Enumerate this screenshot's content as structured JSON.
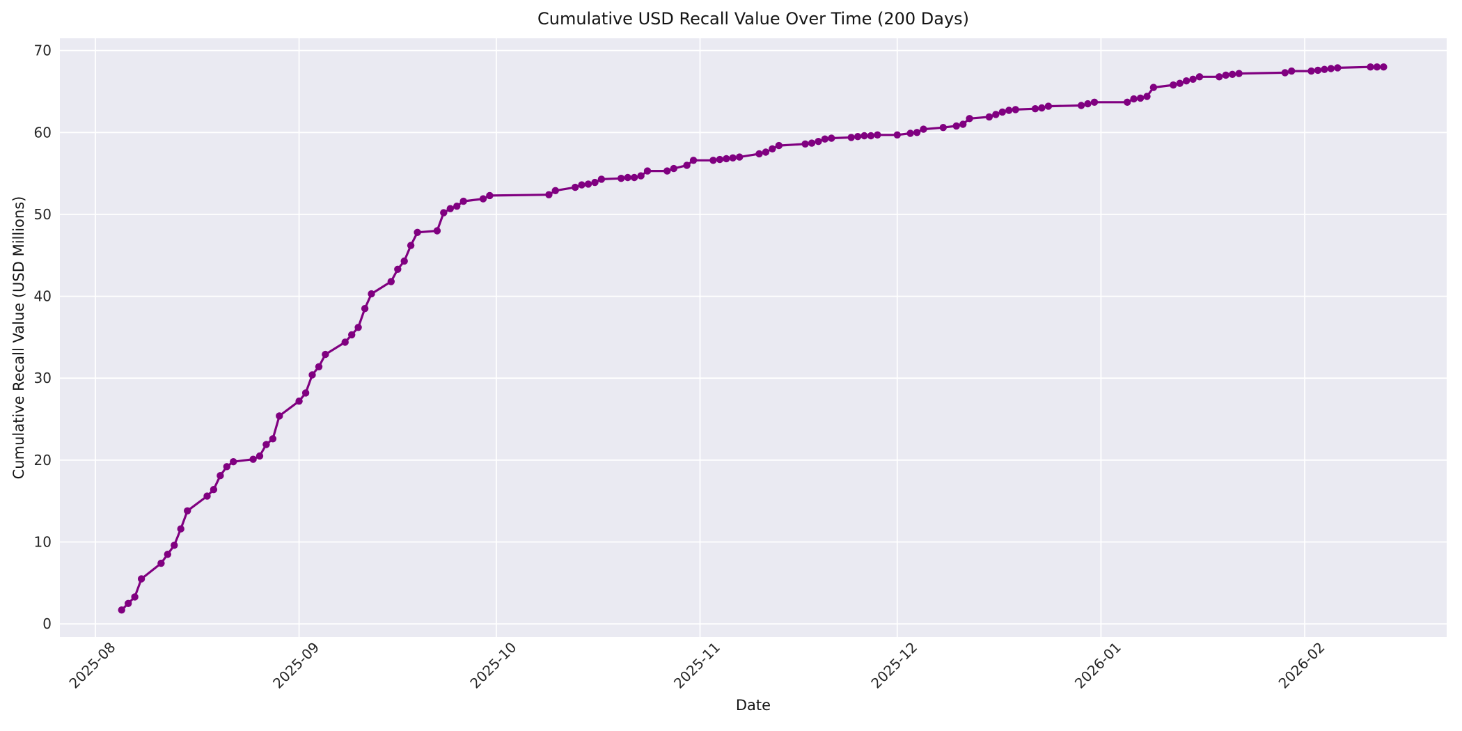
{
  "chart_data": {
    "type": "line",
    "title": "Cumulative USD Recall Value Over Time (200 Days)",
    "xlabel": "Date",
    "ylabel": "Cumulative Recall Value (USD Millions)",
    "legend": null,
    "grid": "white-major-gridlines",
    "x_epoch": "2025-08-01",
    "xlim_days": [
      -5.4,
      205.6
    ],
    "ylim": [
      -1.6,
      71.5
    ],
    "y_ticks": [
      0,
      10,
      20,
      30,
      40,
      50,
      60,
      70
    ],
    "x_ticks": [
      {
        "date": "2025-08-01",
        "label": "2025-08"
      },
      {
        "date": "2025-09-01",
        "label": "2025-09"
      },
      {
        "date": "2025-10-01",
        "label": "2025-10"
      },
      {
        "date": "2025-11-01",
        "label": "2025-11"
      },
      {
        "date": "2025-12-01",
        "label": "2025-12"
      },
      {
        "date": "2026-01-01",
        "label": "2026-01"
      },
      {
        "date": "2026-02-01",
        "label": "2026-02"
      }
    ],
    "colors": {
      "line": "#800080",
      "marker": "#800080",
      "plot_background": "#EAEAF2",
      "gridline": "#FFFFFF",
      "text": "#262626"
    },
    "marker_style": "circle",
    "points": [
      [
        "2025-08-05",
        1.7
      ],
      [
        "2025-08-06",
        2.5
      ],
      [
        "2025-08-07",
        3.3
      ],
      [
        "2025-08-08",
        5.5
      ],
      [
        "2025-08-11",
        7.4
      ],
      [
        "2025-08-12",
        8.5
      ],
      [
        "2025-08-13",
        9.6
      ],
      [
        "2025-08-14",
        11.6
      ],
      [
        "2025-08-15",
        13.8
      ],
      [
        "2025-08-18",
        15.6
      ],
      [
        "2025-08-19",
        16.4
      ],
      [
        "2025-08-20",
        18.1
      ],
      [
        "2025-08-21",
        19.2
      ],
      [
        "2025-08-22",
        19.8
      ],
      [
        "2025-08-25",
        20.1
      ],
      [
        "2025-08-26",
        20.5
      ],
      [
        "2025-08-27",
        21.9
      ],
      [
        "2025-08-28",
        22.6
      ],
      [
        "2025-08-29",
        25.4
      ],
      [
        "2025-09-01",
        27.2
      ],
      [
        "2025-09-02",
        28.2
      ],
      [
        "2025-09-03",
        30.4
      ],
      [
        "2025-09-04",
        31.4
      ],
      [
        "2025-09-05",
        32.9
      ],
      [
        "2025-09-08",
        34.4
      ],
      [
        "2025-09-09",
        35.3
      ],
      [
        "2025-09-10",
        36.2
      ],
      [
        "2025-09-11",
        38.5
      ],
      [
        "2025-09-12",
        40.3
      ],
      [
        "2025-09-15",
        41.8
      ],
      [
        "2025-09-16",
        43.3
      ],
      [
        "2025-09-17",
        44.3
      ],
      [
        "2025-09-18",
        46.2
      ],
      [
        "2025-09-19",
        47.8
      ],
      [
        "2025-09-22",
        48.0
      ],
      [
        "2025-09-23",
        50.2
      ],
      [
        "2025-09-24",
        50.7
      ],
      [
        "2025-09-25",
        51.0
      ],
      [
        "2025-09-26",
        51.6
      ],
      [
        "2025-09-29",
        51.9
      ],
      [
        "2025-09-30",
        52.3
      ],
      [
        "2025-10-09",
        52.4
      ],
      [
        "2025-10-10",
        52.9
      ],
      [
        "2025-10-13",
        53.3
      ],
      [
        "2025-10-14",
        53.6
      ],
      [
        "2025-10-15",
        53.7
      ],
      [
        "2025-10-16",
        53.9
      ],
      [
        "2025-10-17",
        54.3
      ],
      [
        "2025-10-20",
        54.4
      ],
      [
        "2025-10-21",
        54.5
      ],
      [
        "2025-10-22",
        54.5
      ],
      [
        "2025-10-23",
        54.7
      ],
      [
        "2025-10-24",
        55.3
      ],
      [
        "2025-10-27",
        55.3
      ],
      [
        "2025-10-28",
        55.6
      ],
      [
        "2025-10-30",
        56.0
      ],
      [
        "2025-10-31",
        56.6
      ],
      [
        "2025-11-03",
        56.6
      ],
      [
        "2025-11-04",
        56.7
      ],
      [
        "2025-11-05",
        56.8
      ],
      [
        "2025-11-06",
        56.9
      ],
      [
        "2025-11-07",
        57.0
      ],
      [
        "2025-11-10",
        57.4
      ],
      [
        "2025-11-11",
        57.6
      ],
      [
        "2025-11-12",
        58.0
      ],
      [
        "2025-11-13",
        58.4
      ],
      [
        "2025-11-17",
        58.6
      ],
      [
        "2025-11-18",
        58.7
      ],
      [
        "2025-11-19",
        58.9
      ],
      [
        "2025-11-20",
        59.2
      ],
      [
        "2025-11-21",
        59.3
      ],
      [
        "2025-11-24",
        59.4
      ],
      [
        "2025-11-25",
        59.5
      ],
      [
        "2025-11-26",
        59.6
      ],
      [
        "2025-11-27",
        59.6
      ],
      [
        "2025-11-28",
        59.7
      ],
      [
        "2025-12-01",
        59.7
      ],
      [
        "2025-12-03",
        59.9
      ],
      [
        "2025-12-04",
        60.0
      ],
      [
        "2025-12-05",
        60.4
      ],
      [
        "2025-12-08",
        60.6
      ],
      [
        "2025-12-10",
        60.8
      ],
      [
        "2025-12-11",
        61.0
      ],
      [
        "2025-12-12",
        61.7
      ],
      [
        "2025-12-15",
        61.9
      ],
      [
        "2025-12-16",
        62.2
      ],
      [
        "2025-12-17",
        62.5
      ],
      [
        "2025-12-18",
        62.7
      ],
      [
        "2025-12-19",
        62.8
      ],
      [
        "2025-12-22",
        62.9
      ],
      [
        "2025-12-23",
        63.0
      ],
      [
        "2025-12-24",
        63.2
      ],
      [
        "2025-12-29",
        63.3
      ],
      [
        "2025-12-30",
        63.5
      ],
      [
        "2025-12-31",
        63.7
      ],
      [
        "2026-01-05",
        63.7
      ],
      [
        "2026-01-06",
        64.1
      ],
      [
        "2026-01-07",
        64.2
      ],
      [
        "2026-01-08",
        64.4
      ],
      [
        "2026-01-09",
        65.5
      ],
      [
        "2026-01-12",
        65.8
      ],
      [
        "2026-01-13",
        66.0
      ],
      [
        "2026-01-14",
        66.3
      ],
      [
        "2026-01-15",
        66.5
      ],
      [
        "2026-01-16",
        66.8
      ],
      [
        "2026-01-19",
        66.8
      ],
      [
        "2026-01-20",
        67.0
      ],
      [
        "2026-01-21",
        67.1
      ],
      [
        "2026-01-22",
        67.2
      ],
      [
        "2026-01-29",
        67.3
      ],
      [
        "2026-01-30",
        67.5
      ],
      [
        "2026-02-02",
        67.5
      ],
      [
        "2026-02-03",
        67.6
      ],
      [
        "2026-02-04",
        67.7
      ],
      [
        "2026-02-05",
        67.8
      ],
      [
        "2026-02-06",
        67.9
      ],
      [
        "2026-02-11",
        68.0
      ],
      [
        "2026-02-12",
        68.0
      ],
      [
        "2026-02-13",
        68.0
      ]
    ]
  }
}
